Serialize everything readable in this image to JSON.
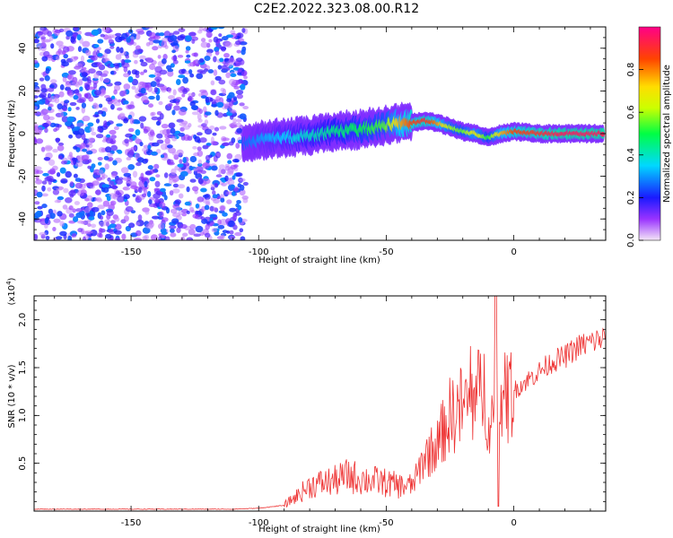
{
  "title": "C2E2.2022.323.08.00.R12",
  "colors": {
    "snr_line": "#ee3333",
    "axis": "#000000",
    "background": "#ffffff"
  },
  "chart_data": [
    {
      "type": "heatmap",
      "title": "C2E2.2022.323.08.00.R12",
      "xlabel": "Height of straight line (km)",
      "ylabel": "Frequency (Hz)",
      "xlim": [
        -188,
        36
      ],
      "ylim": [
        -50,
        50
      ],
      "xticks": [
        -150,
        -100,
        -50,
        0
      ],
      "xtick_labels": [
        "-150",
        "-100",
        "-50",
        "0"
      ],
      "yticks": [
        -40,
        -20,
        0,
        20,
        40
      ],
      "ytick_labels": [
        "-40",
        "-20",
        "0",
        "20",
        "40"
      ],
      "colorbar": {
        "label": "Normalized spectral amplitude",
        "range": [
          0,
          1
        ],
        "ticks": [
          0,
          0.2,
          0.4,
          0.6,
          0.8
        ],
        "tick_labels": [
          "0.0",
          "0.2",
          "0.4",
          "0.6",
          "0.8"
        ]
      },
      "ridge": {
        "description": "frequency of peak spectral amplitude vs height",
        "x": [
          -106,
          -100,
          -90,
          -80,
          -70,
          -60,
          -50,
          -45,
          -40,
          -35,
          -30,
          -25,
          -20,
          -15,
          -10,
          -5,
          0,
          10,
          20,
          35
        ],
        "y": [
          -5,
          -3,
          -2,
          -1,
          1,
          2,
          4,
          5,
          5,
          6,
          5,
          3,
          1,
          0,
          -2,
          0,
          1,
          0,
          0,
          0
        ],
        "amplitude": [
          0.25,
          0.3,
          0.35,
          0.4,
          0.45,
          0.5,
          0.55,
          0.75,
          0.85,
          0.9,
          0.8,
          0.6,
          0.55,
          0.7,
          0.5,
          0.75,
          0.85,
          0.9,
          0.95,
          0.95
        ]
      },
      "noise_region": {
        "x_range": [
          -188,
          -105
        ],
        "amplitude_range": [
          0.05,
          0.3
        ]
      }
    },
    {
      "type": "line",
      "xlabel": "Height of straight line (km)",
      "ylabel": "SNR (10 * v/v)",
      "y_multiplier": "(x10",
      "y_multiplier_exponent": "4",
      "y_multiplier_close": ")",
      "xlim": [
        -188,
        36
      ],
      "ylim": [
        0,
        2.25
      ],
      "xticks": [
        -150,
        -100,
        -50,
        0
      ],
      "xtick_labels": [
        "-150",
        "-100",
        "-50",
        "0"
      ],
      "yticks": [
        0.5,
        1.0,
        1.5,
        2.0
      ],
      "ytick_labels": [
        "0.5",
        "1.0",
        "1.5",
        "2.0"
      ],
      "series": [
        {
          "name": "SNR",
          "x": [
            -188,
            -150,
            -110,
            -100,
            -90,
            -85,
            -80,
            -75,
            -70,
            -65,
            -60,
            -55,
            -50,
            -45,
            -40,
            -38,
            -35,
            -30,
            -27,
            -25,
            -20,
            -15,
            -12,
            -10,
            -8,
            -6,
            -5,
            -3,
            0,
            5,
            10,
            15,
            20,
            25,
            30,
            36
          ],
          "y": [
            0.02,
            0.02,
            0.02,
            0.03,
            0.06,
            0.15,
            0.25,
            0.28,
            0.3,
            0.35,
            0.32,
            0.3,
            0.28,
            0.25,
            0.25,
            0.35,
            0.55,
            0.65,
            0.85,
            0.95,
            1.05,
            1.1,
            1.25,
            1.0,
            0.9,
            1.0,
            1.15,
            1.1,
            1.25,
            1.35,
            1.45,
            1.55,
            1.6,
            1.7,
            1.75,
            1.8
          ]
        }
      ]
    }
  ]
}
